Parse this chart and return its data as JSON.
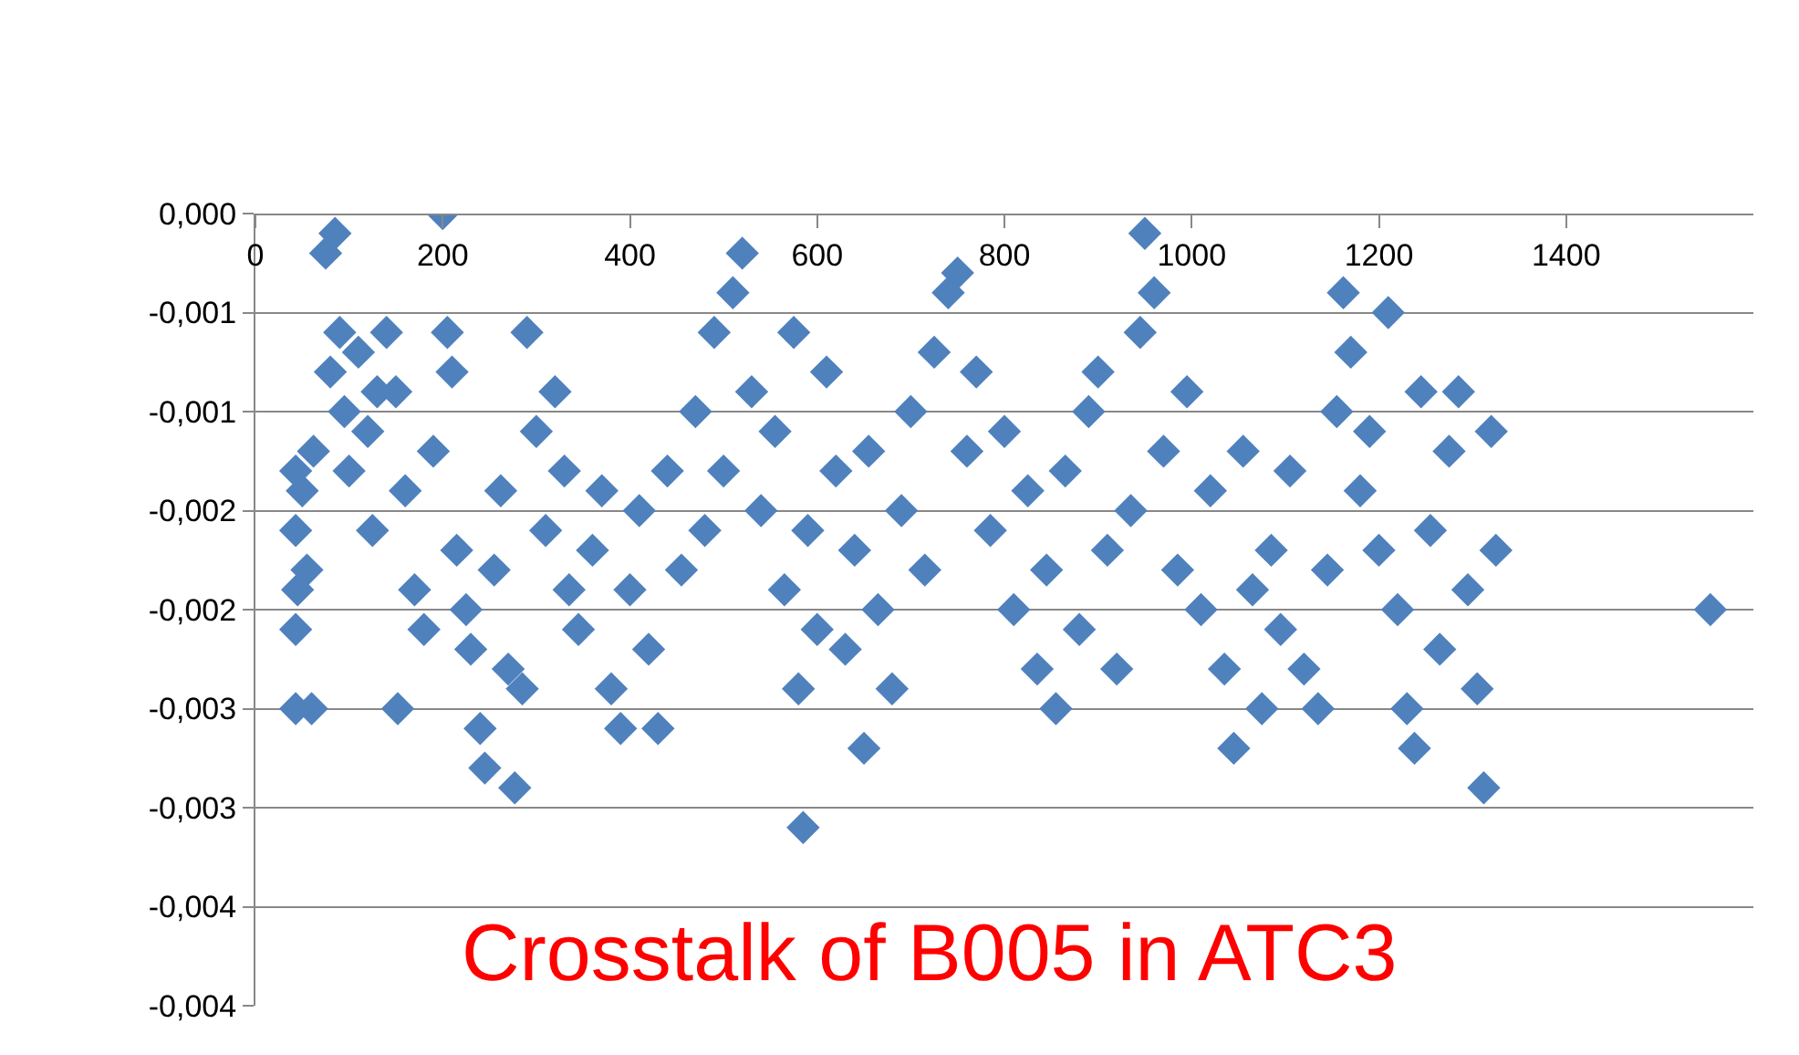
{
  "chart_data": {
    "type": "scatter",
    "color": "#4f81bd",
    "marker": "diamond",
    "grid": "y",
    "annotations": [
      "Crosstalk of B005 in ATC3"
    ],
    "xlim": [
      0,
      1600
    ],
    "xticks": [
      0,
      200,
      400,
      600,
      800,
      1000,
      1200,
      1400
    ],
    "ylim": [
      -0.004,
      0
    ],
    "yticks": [
      {
        "value": 0,
        "label": "0,000"
      },
      {
        "value": -0.0005,
        "label": "-0,001"
      },
      {
        "value": -0.001,
        "label": "-0,001"
      },
      {
        "value": -0.0015,
        "label": "-0,002"
      },
      {
        "value": -0.002,
        "label": "-0,002"
      },
      {
        "value": -0.0025,
        "label": "-0,003"
      },
      {
        "value": -0.003,
        "label": "-0,003"
      },
      {
        "value": -0.0035,
        "label": "-0,004"
      },
      {
        "value": -0.004,
        "label": "-0,004"
      }
    ],
    "x": [
      43,
      43,
      45,
      43,
      43,
      50,
      55,
      60,
      62,
      75,
      85,
      80,
      90,
      95,
      100,
      110,
      120,
      125,
      130,
      140,
      150,
      152,
      160,
      170,
      180,
      190,
      200,
      205,
      210,
      215,
      225,
      230,
      240,
      245,
      255,
      262,
      270,
      277,
      285,
      290,
      300,
      310,
      320,
      330,
      335,
      345,
      360,
      370,
      380,
      390,
      400,
      410,
      420,
      430,
      440,
      455,
      470,
      480,
      490,
      500,
      510,
      520,
      530,
      540,
      555,
      565,
      575,
      580,
      585,
      590,
      600,
      610,
      620,
      630,
      640,
      650,
      655,
      665,
      680,
      690,
      700,
      715,
      725,
      740,
      750,
      760,
      770,
      785,
      800,
      810,
      825,
      835,
      845,
      855,
      865,
      880,
      890,
      900,
      910,
      920,
      935,
      945,
      950,
      960,
      970,
      985,
      995,
      1010,
      1020,
      1035,
      1045,
      1055,
      1065,
      1075,
      1085,
      1095,
      1105,
      1120,
      1135,
      1145,
      1155,
      1162,
      1170,
      1180,
      1190,
      1200,
      1210,
      1220,
      1230,
      1238,
      1245,
      1255,
      1265,
      1275,
      1285,
      1295,
      1305,
      1312,
      1320,
      1325,
      1554
    ],
    "values": [
      -0.0013,
      -0.0016,
      -0.0019,
      -0.0021,
      -0.0025,
      -0.0014,
      -0.0018,
      -0.0025,
      -0.0012,
      -0.0002,
      -0.0001,
      -0.0008,
      -0.0006,
      -0.001,
      -0.0013,
      -0.0007,
      -0.0011,
      -0.0016,
      -0.0009,
      -0.0006,
      -0.0009,
      -0.0025,
      -0.0014,
      -0.0019,
      -0.0021,
      -0.0012,
      0,
      -0.0006,
      -0.0008,
      -0.0017,
      -0.002,
      -0.0022,
      -0.0026,
      -0.0028,
      -0.0018,
      -0.0014,
      -0.0023,
      -0.0029,
      -0.0024,
      -0.0006,
      -0.0011,
      -0.0016,
      -0.0009,
      -0.0013,
      -0.0019,
      -0.0021,
      -0.0017,
      -0.0014,
      -0.0024,
      -0.0026,
      -0.0019,
      -0.0015,
      -0.0022,
      -0.0026,
      -0.0013,
      -0.0018,
      -0.001,
      -0.0016,
      -0.0006,
      -0.0013,
      -0.0004,
      -0.0002,
      -0.0009,
      -0.0015,
      -0.0011,
      -0.0019,
      -0.0006,
      -0.0024,
      -0.0031,
      -0.0016,
      -0.0021,
      -0.0008,
      -0.0013,
      -0.0022,
      -0.0017,
      -0.0027,
      -0.0012,
      -0.002,
      -0.0024,
      -0.0015,
      -0.001,
      -0.0018,
      -0.0007,
      -0.0004,
      -0.0003,
      -0.0012,
      -0.0008,
      -0.0016,
      -0.0011,
      -0.002,
      -0.0014,
      -0.0023,
      -0.0018,
      -0.0025,
      -0.0013,
      -0.0021,
      -0.001,
      -0.0008,
      -0.0017,
      -0.0023,
      -0.0015,
      -0.0006,
      -0.0001,
      -0.0004,
      -0.0012,
      -0.0018,
      -0.0009,
      -0.002,
      -0.0014,
      -0.0023,
      -0.0027,
      -0.0012,
      -0.0019,
      -0.0025,
      -0.0017,
      -0.0021,
      -0.0013,
      -0.0023,
      -0.0025,
      -0.0018,
      -0.001,
      -0.0004,
      -0.0007,
      -0.0014,
      -0.0011,
      -0.0017,
      -0.0005,
      -0.002,
      -0.0025,
      -0.0027,
      -0.0009,
      -0.0016,
      -0.0022,
      -0.0012,
      -0.0009,
      -0.0019,
      -0.0024,
      -0.0029,
      -0.0011,
      -0.0017,
      -0.002
    ]
  }
}
